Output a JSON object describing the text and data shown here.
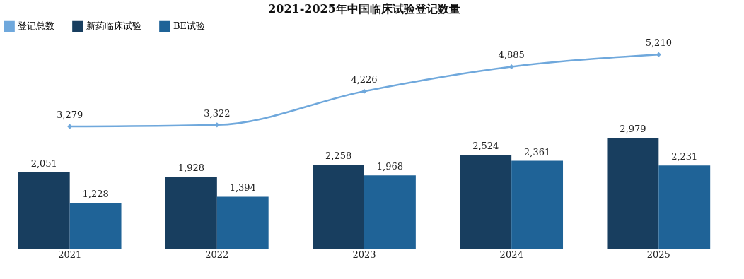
{
  "chart_data": {
    "type": "bar",
    "title": "2021-2025年中国临床试验登记数量",
    "categories": [
      "2021",
      "2022",
      "2023",
      "2024",
      "2025"
    ],
    "series": [
      {
        "name": "登记总数",
        "type": "line",
        "color": "#6fa8dc",
        "values": [
          3279,
          3322,
          4226,
          4885,
          5210
        ],
        "value_labels": [
          "3,279",
          "3,322",
          "4,226",
          "4,885",
          "5,210"
        ]
      },
      {
        "name": "新药临床试验",
        "color": "#183e5f",
        "values": [
          2051,
          1928,
          2258,
          2524,
          2979
        ],
        "value_labels": [
          "2,051",
          "1,928",
          "2,258",
          "2,524",
          "2,979"
        ]
      },
      {
        "name": "BE试验",
        "color": "#1f6397",
        "values": [
          1228,
          1394,
          1968,
          2361,
          2231
        ],
        "value_labels": [
          "1,228",
          "1,394",
          "1,968",
          "2,361",
          "2,231"
        ]
      }
    ],
    "legend": "top left",
    "marker": "diamond",
    "line_style": "solid",
    "grid": false,
    "tick_labels": "x"
  }
}
